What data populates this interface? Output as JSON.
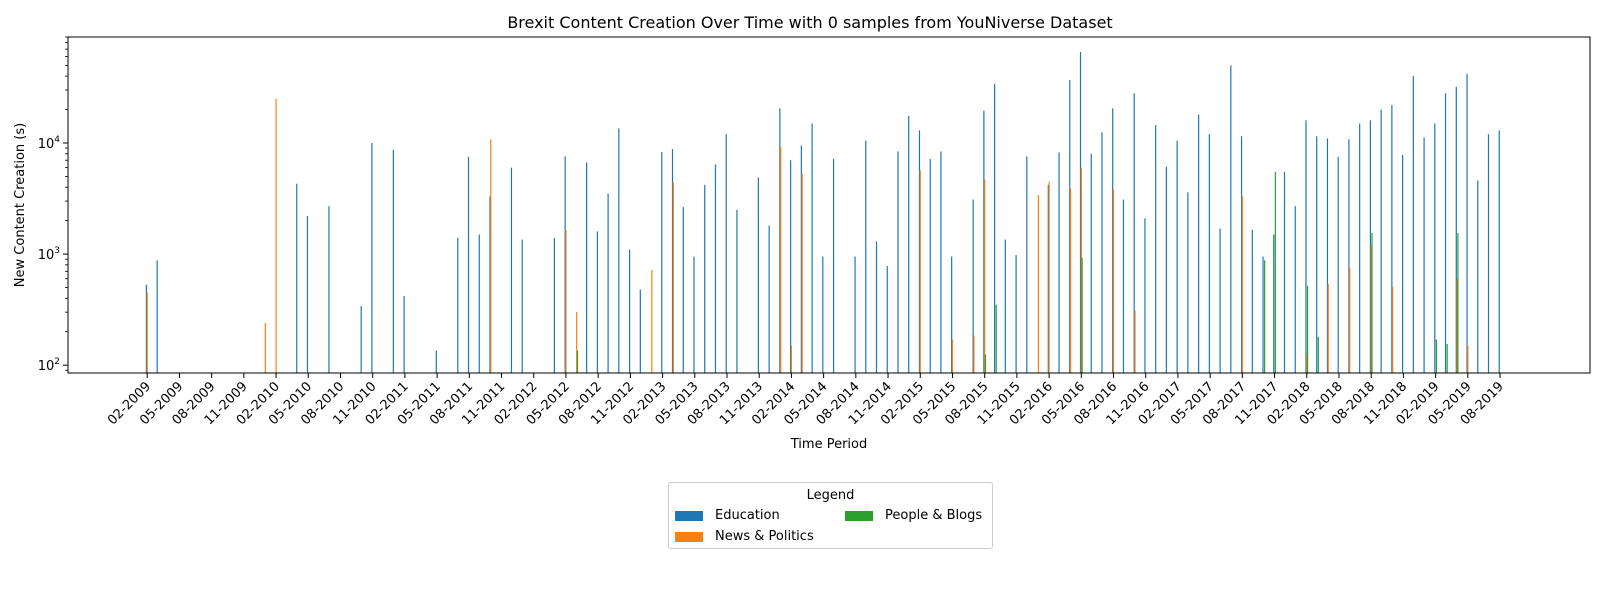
{
  "chart_data": {
    "type": "bar",
    "title": "Brexit Content Creation Over Time with 0 samples from YouNiverse Dataset",
    "xlabel": "Time Period",
    "ylabel": "New Content Creation (s)",
    "yscale": "log",
    "ylim": [
      85,
      90000
    ],
    "legend_placement": "bottom-center",
    "grid": false,
    "months_span": {
      "start": "01-2009",
      "end": "10-2019"
    },
    "tick_labels": [
      "02-2009",
      "05-2009",
      "08-2009",
      "11-2009",
      "02-2010",
      "05-2010",
      "08-2010",
      "11-2010",
      "02-2011",
      "05-2011",
      "08-2011",
      "11-2011",
      "02-2012",
      "05-2012",
      "08-2012",
      "11-2012",
      "02-2013",
      "05-2013",
      "08-2013",
      "11-2013",
      "02-2014",
      "05-2014",
      "08-2014",
      "11-2014",
      "02-2015",
      "05-2015",
      "08-2015",
      "11-2015",
      "02-2016",
      "05-2016",
      "08-2016",
      "11-2016",
      "02-2017",
      "05-2017",
      "08-2017",
      "11-2017",
      "02-2018",
      "05-2018",
      "08-2018",
      "11-2018",
      "02-2019",
      "05-2019",
      "08-2019"
    ],
    "series": [
      {
        "name": "Education",
        "color": "#1f77b4",
        "points": [
          [
            "02-2009",
            530
          ],
          [
            "03-2009",
            880
          ],
          [
            "04-2010",
            4300
          ],
          [
            "05-2010",
            2200
          ],
          [
            "07-2010",
            2700
          ],
          [
            "10-2010",
            340
          ],
          [
            "11-2010",
            10000
          ],
          [
            "01-2011",
            8700
          ],
          [
            "02-2011",
            420
          ],
          [
            "05-2011",
            135
          ],
          [
            "07-2011",
            1400
          ],
          [
            "08-2011",
            7500
          ],
          [
            "09-2011",
            1500
          ],
          [
            "10-2011",
            3300
          ],
          [
            "12-2011",
            6000
          ],
          [
            "01-2012",
            1350
          ],
          [
            "04-2012",
            1400
          ],
          [
            "05-2012",
            7600
          ],
          [
            "07-2012",
            6700
          ],
          [
            "08-2012",
            1600
          ],
          [
            "09-2012",
            3500
          ],
          [
            "10-2012",
            13500
          ],
          [
            "11-2012",
            1100
          ],
          [
            "12-2012",
            480
          ],
          [
            "02-2013",
            8300
          ],
          [
            "03-2013",
            8800
          ],
          [
            "04-2013",
            2650
          ],
          [
            "05-2013",
            950
          ],
          [
            "06-2013",
            4200
          ],
          [
            "07-2013",
            6400
          ],
          [
            "08-2013",
            12000
          ],
          [
            "09-2013",
            2500
          ],
          [
            "11-2013",
            4900
          ],
          [
            "12-2013",
            1800
          ],
          [
            "01-2014",
            20500
          ],
          [
            "02-2014",
            7000
          ],
          [
            "03-2014",
            9500
          ],
          [
            "04-2014",
            15000
          ],
          [
            "05-2014",
            950
          ],
          [
            "06-2014",
            7200
          ],
          [
            "08-2014",
            950
          ],
          [
            "09-2014",
            10500
          ],
          [
            "10-2014",
            1300
          ],
          [
            "11-2014",
            780
          ],
          [
            "12-2014",
            8400
          ],
          [
            "01-2015",
            17500
          ],
          [
            "02-2015",
            13000
          ],
          [
            "03-2015",
            7200
          ],
          [
            "04-2015",
            8400
          ],
          [
            "05-2015",
            950
          ],
          [
            "07-2015",
            3100
          ],
          [
            "08-2015",
            19500
          ],
          [
            "09-2015",
            34000
          ],
          [
            "10-2015",
            1350
          ],
          [
            "11-2015",
            980
          ],
          [
            "12-2015",
            7600
          ],
          [
            "02-2016",
            4200
          ],
          [
            "03-2016",
            8200
          ],
          [
            "04-2016",
            37000
          ],
          [
            "05-2016",
            66000
          ],
          [
            "06-2016",
            8000
          ],
          [
            "07-2016",
            12500
          ],
          [
            "08-2016",
            20500
          ],
          [
            "09-2016",
            3100
          ],
          [
            "10-2016",
            28000
          ],
          [
            "11-2016",
            2100
          ],
          [
            "12-2016",
            14500
          ],
          [
            "01-2017",
            6100
          ],
          [
            "02-2017",
            10500
          ],
          [
            "03-2017",
            3600
          ],
          [
            "04-2017",
            18000
          ],
          [
            "05-2017",
            12000
          ],
          [
            "06-2017",
            1700
          ],
          [
            "07-2017",
            50000
          ],
          [
            "08-2017",
            11500
          ],
          [
            "09-2017",
            1650
          ],
          [
            "10-2017",
            950
          ],
          [
            "11-2017",
            1500
          ],
          [
            "12-2017",
            5500
          ],
          [
            "01-2018",
            2700
          ],
          [
            "02-2018",
            16000
          ],
          [
            "03-2018",
            11500
          ],
          [
            "04-2018",
            11000
          ],
          [
            "05-2018",
            7500
          ],
          [
            "06-2018",
            10800
          ],
          [
            "07-2018",
            15000
          ],
          [
            "08-2018",
            16000
          ],
          [
            "09-2018",
            20000
          ],
          [
            "10-2018",
            22000
          ],
          [
            "11-2018",
            7800
          ],
          [
            "12-2018",
            40000
          ],
          [
            "01-2019",
            11200
          ],
          [
            "02-2019",
            15000
          ],
          [
            "03-2019",
            28000
          ],
          [
            "04-2019",
            32000
          ],
          [
            "05-2019",
            42000
          ],
          [
            "06-2019",
            4600
          ],
          [
            "07-2019",
            12000
          ],
          [
            "08-2019",
            13000
          ]
        ]
      },
      {
        "name": "News & Politics",
        "color": "#ff7f0e",
        "points": [
          [
            "02-2009",
            450
          ],
          [
            "01-2010",
            240
          ],
          [
            "02-2010",
            25000
          ],
          [
            "10-2011",
            10800
          ],
          [
            "05-2012",
            1650
          ],
          [
            "06-2012",
            300
          ],
          [
            "01-2013",
            720
          ],
          [
            "03-2013",
            4400
          ],
          [
            "01-2014",
            9200
          ],
          [
            "02-2014",
            150
          ],
          [
            "03-2014",
            5300
          ],
          [
            "02-2015",
            5700
          ],
          [
            "05-2015",
            170
          ],
          [
            "07-2015",
            185
          ],
          [
            "08-2015",
            4700
          ],
          [
            "01-2016",
            3400
          ],
          [
            "02-2016",
            4500
          ],
          [
            "04-2016",
            3900
          ],
          [
            "05-2016",
            6000
          ],
          [
            "08-2016",
            3800
          ],
          [
            "10-2016",
            310
          ],
          [
            "08-2017",
            3300
          ],
          [
            "02-2018",
            125
          ],
          [
            "04-2018",
            540
          ],
          [
            "06-2018",
            760
          ],
          [
            "08-2018",
            1200
          ],
          [
            "10-2018",
            510
          ],
          [
            "04-2019",
            600
          ],
          [
            "05-2019",
            150
          ]
        ]
      },
      {
        "name": "People & Blogs",
        "color": "#2ca02c",
        "points": [
          [
            "06-2012",
            135
          ],
          [
            "08-2015",
            125
          ],
          [
            "09-2015",
            350
          ],
          [
            "05-2016",
            930
          ],
          [
            "10-2017",
            880
          ],
          [
            "11-2017",
            5500
          ],
          [
            "02-2018",
            520
          ],
          [
            "03-2018",
            180
          ],
          [
            "08-2018",
            1550
          ],
          [
            "02-2019",
            170
          ],
          [
            "03-2019",
            155
          ],
          [
            "04-2019",
            1550
          ]
        ]
      }
    ]
  }
}
